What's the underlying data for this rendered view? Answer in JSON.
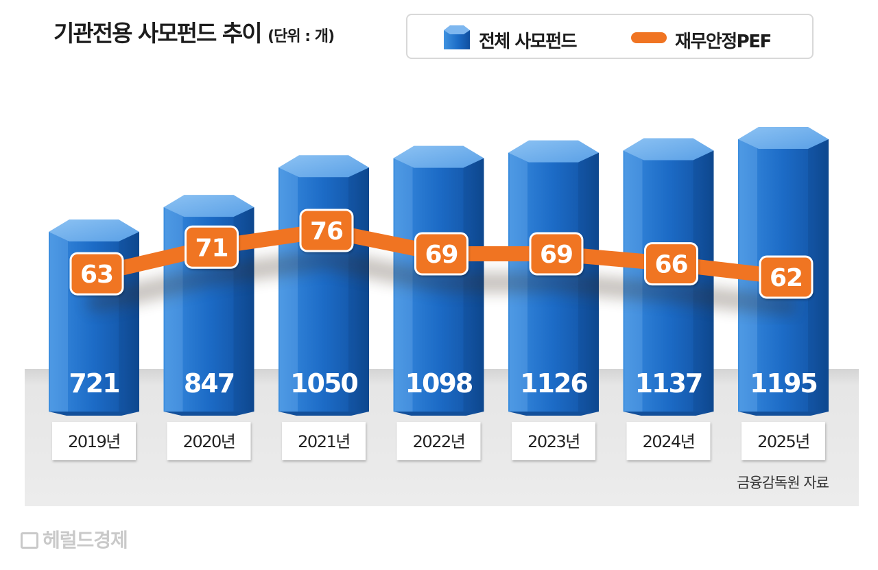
{
  "chart_data": {
    "type": "bar",
    "title": "기관전용 사모펀드 추이",
    "unit": "(단위 : 개)",
    "categories": [
      "2019년",
      "2020년",
      "2021년",
      "2022년",
      "2023년",
      "2024년",
      "2025년"
    ],
    "series": [
      {
        "name": "전체 사모펀드",
        "type": "bar",
        "color": "#1f6fc9",
        "values": [
          721,
          847,
          1050,
          1098,
          1126,
          1137,
          1195
        ]
      },
      {
        "name": "재무안정PEF",
        "type": "line",
        "color": "#f07422",
        "values": [
          63,
          71,
          76,
          69,
          69,
          66,
          62
        ]
      }
    ],
    "source": "금융감독원 자료",
    "legend_position": "top-right",
    "grid": false
  },
  "watermark": "헤럴드경제"
}
